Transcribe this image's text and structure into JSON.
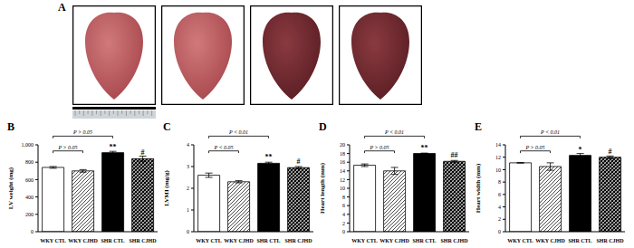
{
  "panel_a": {
    "panel": "A"
  },
  "chart_data": [
    {
      "type": "bar",
      "panel": "B",
      "y_label": "LV weight (mg)",
      "categories": [
        "WKY CTL",
        "WKY CJHD",
        "SHR CTL",
        "SHR CJHD"
      ],
      "values": [
        740,
        700,
        910,
        840
      ],
      "errors": [
        10,
        15,
        15,
        30
      ],
      "colors": [
        "#ffffff",
        "#ffffff",
        "#000000",
        "#000000"
      ],
      "annotations": [
        null,
        null,
        "**",
        "#"
      ],
      "brackets": [
        {
          "from": "WKY CTL",
          "to": "WKY CJHD",
          "label": "P > 0.05"
        },
        {
          "from": "WKY CTL",
          "to": "SHR CTL",
          "label": "P > 0.05"
        }
      ],
      "ylim": [
        0,
        1000
      ],
      "yticks": [
        0,
        200,
        400,
        600,
        800,
        {
          "value": 1000,
          "label": "1,000"
        }
      ],
      "grid": false
    },
    {
      "type": "bar",
      "panel": "C",
      "y_label": "LVMI (mg/g)",
      "categories": [
        "WKY CTL",
        "WKY CJHD",
        "SHR CTL",
        "SHR CJHD"
      ],
      "values": [
        2.6,
        2.3,
        3.15,
        2.95
      ],
      "errors": [
        0.1,
        0.05,
        0.05,
        0.05
      ],
      "colors": [
        "#ffffff",
        "#ffffff",
        "#000000",
        "#000000"
      ],
      "annotations": [
        null,
        null,
        "**",
        "#"
      ],
      "brackets": [
        {
          "from": "WKY CTL",
          "to": "WKY CJHD",
          "label": "P < 0.05"
        },
        {
          "from": "WKY CTL",
          "to": "SHR CTL",
          "label": "P < 0.01"
        }
      ],
      "ylim": [
        0,
        4
      ],
      "yticks": [
        0,
        1,
        2,
        3,
        4
      ],
      "grid": false
    },
    {
      "type": "bar",
      "panel": "D",
      "y_label": "Heart length (mm)",
      "categories": [
        "WKY CTL",
        "WKY CJHD",
        "SHR CTL",
        "SHR CJHD"
      ],
      "values": [
        15.3,
        14,
        18,
        16.2
      ],
      "errors": [
        0.3,
        0.8,
        0.1,
        0.2
      ],
      "colors": [
        "#ffffff",
        "#ffffff",
        "#000000",
        "#000000"
      ],
      "annotations": [
        null,
        null,
        "**",
        "##"
      ],
      "brackets": [
        {
          "from": "WKY CTL",
          "to": "WKY CJHD",
          "label": "P > 0.05"
        },
        {
          "from": "WKY CTL",
          "to": "SHR CTL",
          "label": "P < 0.01"
        }
      ],
      "ylim": [
        0,
        20
      ],
      "yticks": [
        0,
        2,
        4,
        6,
        8,
        10,
        12,
        14,
        16,
        18,
        20
      ],
      "grid": false
    },
    {
      "type": "bar",
      "panel": "E",
      "y_label": "Heart width (mm)",
      "categories": [
        "WKY CTL",
        "WKY CJHD",
        "SHR CTL",
        "SHR CJHD"
      ],
      "values": [
        11.1,
        10.5,
        12.3,
        12.0
      ],
      "errors": [
        0.05,
        0.6,
        0.3,
        0.2
      ],
      "colors": [
        "#ffffff",
        "#ffffff",
        "#000000",
        "#000000"
      ],
      "annotations": [
        null,
        null,
        "*",
        "#"
      ],
      "brackets": [
        {
          "from": "WKY CTL",
          "to": "WKY CJHD",
          "label": "P > 0.05"
        },
        {
          "from": "WKY CTL",
          "to": "SHR CTL",
          "label": "P < 0.01"
        }
      ],
      "ylim": [
        0,
        14
      ],
      "yticks": [
        0,
        2,
        4,
        6,
        8,
        10,
        12,
        14
      ],
      "grid": false
    }
  ]
}
